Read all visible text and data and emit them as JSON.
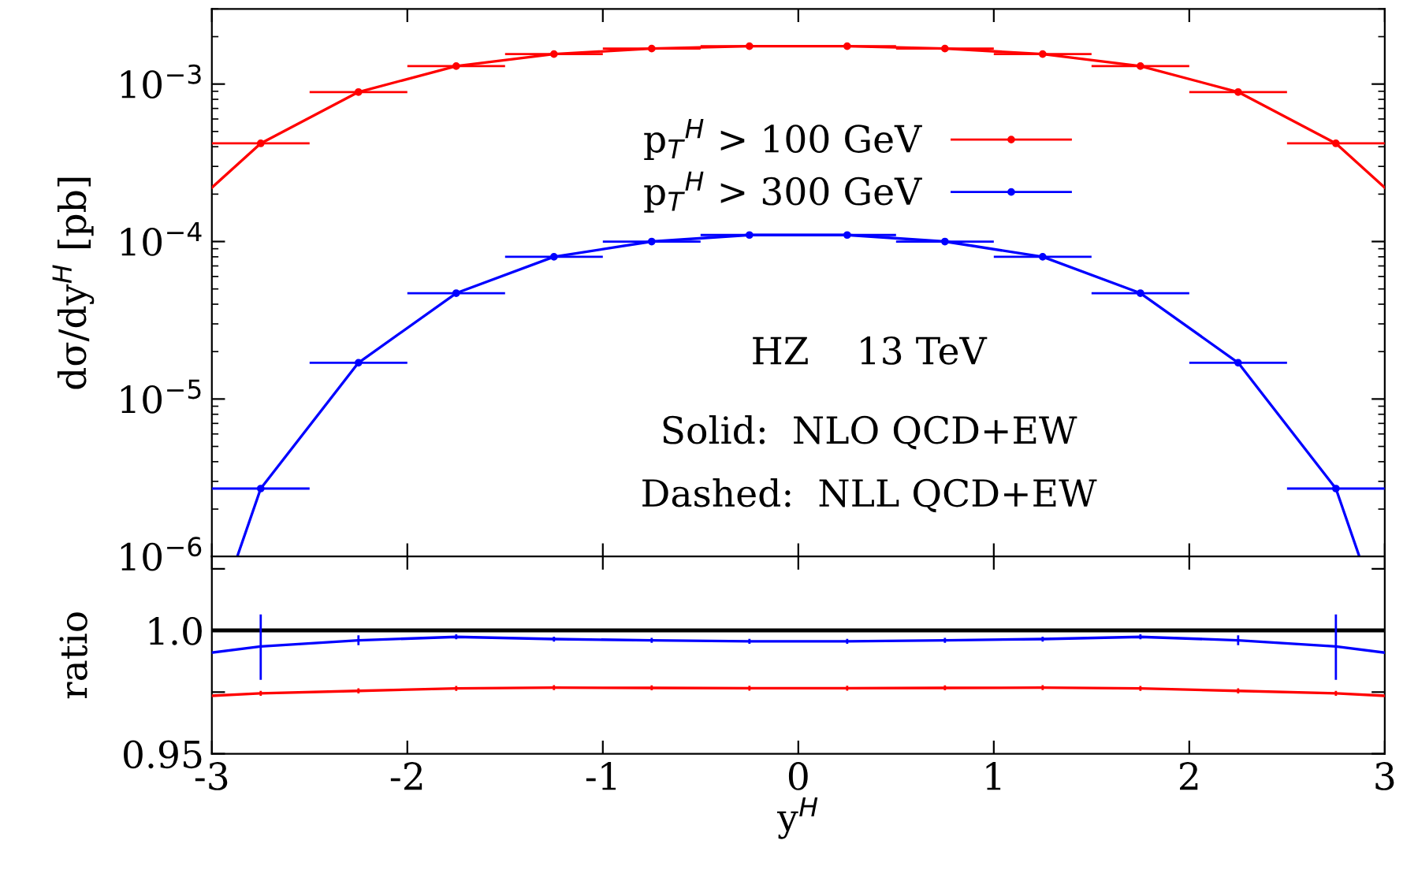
{
  "chart_data": [
    {
      "type": "line",
      "ylabel": "dσ/dy$^{H}$ [pb]",
      "log": "y",
      "xlim": [
        -3,
        3
      ],
      "xticks": [
        -3,
        -2,
        -1,
        0,
        1,
        2,
        3
      ],
      "ylim": [
        1e-06,
        0.003
      ],
      "yticks": [
        {
          "value": 1e-06,
          "label": "10$^{−6}$"
        },
        {
          "value": 1e-05,
          "label": "10$^{−5}$"
        },
        {
          "value": 0.0001,
          "label": "10$^{−4}$"
        },
        {
          "value": 0.001,
          "label": "10$^{−3}$"
        }
      ],
      "tick_labels": "y",
      "legend": "top",
      "annotations": [
        "HZ    13 TeV",
        "Solid:  NLO QCD+EW",
        "Dashed:  NLL QCD+EW"
      ],
      "series": [
        {
          "name": "p$_{T}$$^{H}$ > 100 GeV",
          "type": "scatter",
          "marker": "circle",
          "color": "#ff0000",
          "x": [
            -2.75,
            -2.25,
            -1.75,
            -1.25,
            -0.75,
            -0.25,
            0.25,
            0.75,
            1.25,
            1.75,
            2.25,
            2.75
          ],
          "values": [
            0.00042,
            0.00089,
            0.0013,
            0.00155,
            0.00168,
            0.00174,
            0.00174,
            0.00168,
            0.00155,
            0.0013,
            0.00089,
            0.00042
          ],
          "xerrors": [
            0.25,
            0.25,
            0.25,
            0.25,
            0.25,
            0.25,
            0.25,
            0.25,
            0.25,
            0.25,
            0.25,
            0.25
          ]
        },
        {
          "type": "line",
          "color": "#ff0000",
          "x": [
            -3,
            -2.75,
            -2.25,
            -1.75,
            -1.25,
            -0.75,
            -0.25,
            0.25,
            0.75,
            1.25,
            1.75,
            2.25,
            2.75,
            3
          ],
          "values": [
            0.00022,
            0.00042,
            0.00089,
            0.0013,
            0.00155,
            0.00168,
            0.00174,
            0.00174,
            0.00168,
            0.00155,
            0.0013,
            0.00089,
            0.00042,
            0.00022
          ]
        },
        {
          "name": "p$_{T}$$^{H}$ > 300 GeV",
          "type": "scatter",
          "marker": "circle",
          "color": "#0000ff",
          "x": [
            -2.75,
            -2.25,
            -1.75,
            -1.25,
            -0.75,
            -0.25,
            0.25,
            0.75,
            1.25,
            1.75,
            2.25,
            2.75
          ],
          "values": [
            2.7e-06,
            1.7e-05,
            4.7e-05,
            8e-05,
            0.0001,
            0.00011,
            0.00011,
            0.0001,
            8e-05,
            4.7e-05,
            1.7e-05,
            2.7e-06
          ],
          "xerrors": [
            0.25,
            0.25,
            0.25,
            0.25,
            0.25,
            0.25,
            0.25,
            0.25,
            0.25,
            0.25,
            0.25,
            0.25
          ]
        },
        {
          "type": "line",
          "color": "#0000ff",
          "x": [
            -2.87,
            -2.75,
            -2.25,
            -1.75,
            -1.25,
            -0.75,
            -0.25,
            0.25,
            0.75,
            1.25,
            1.75,
            2.25,
            2.75,
            2.87
          ],
          "values": [
            1e-06,
            2.7e-06,
            1.7e-05,
            4.7e-05,
            8e-05,
            0.0001,
            0.00011,
            0.00011,
            0.0001,
            8e-05,
            4.7e-05,
            1.7e-05,
            2.7e-06,
            1e-06
          ]
        }
      ]
    },
    {
      "type": "line",
      "ylabel": "ratio",
      "xlabel": "y$^{H}$",
      "xlim": [
        -3,
        3
      ],
      "xticks": [
        -3,
        -2,
        -1,
        0,
        1,
        2,
        3
      ],
      "ylim": [
        0.95,
        1.03
      ],
      "yticks": [
        0.95,
        {
          "value": 0.975,
          "label": null
        },
        {
          "value": 1.0,
          "label": "1.0"
        },
        {
          "value": 1.025,
          "label": null
        }
      ],
      "ref_lines": [
        {
          "axis": "y",
          "value": 1.0,
          "color": "#000000"
        }
      ],
      "series": [
        {
          "color": "#ff0000",
          "x": [
            -3,
            -2.75,
            -2.25,
            -1.75,
            -1.25,
            -0.75,
            -0.25,
            0.25,
            0.75,
            1.25,
            1.75,
            2.25,
            2.75,
            3
          ],
          "values": [
            0.9735,
            0.9745,
            0.9755,
            0.9765,
            0.9768,
            0.9767,
            0.9766,
            0.9766,
            0.9767,
            0.9768,
            0.9765,
            0.9755,
            0.9745,
            0.9735
          ],
          "errors": [
            null,
            0.001,
            0.001,
            0.001,
            0.001,
            0.001,
            0.001,
            0.001,
            0.001,
            0.001,
            0.001,
            0.001,
            0.001,
            null
          ]
        },
        {
          "color": "#0000ff",
          "x": [
            -3,
            -2.75,
            -2.25,
            -1.75,
            -1.25,
            -0.75,
            -0.25,
            0.25,
            0.75,
            1.25,
            1.75,
            2.25,
            2.75,
            3
          ],
          "values": [
            0.991,
            0.9935,
            0.996,
            0.9974,
            0.9965,
            0.996,
            0.9956,
            0.9956,
            0.996,
            0.9965,
            0.9974,
            0.996,
            0.9935,
            0.991
          ],
          "errors": [
            null,
            [
              0.98,
              1.0065
            ],
            0.002,
            0.001,
            0.001,
            0.001,
            0.001,
            0.001,
            0.001,
            0.001,
            0.001,
            0.002,
            [
              0.98,
              1.0065
            ],
            null
          ]
        }
      ]
    }
  ]
}
